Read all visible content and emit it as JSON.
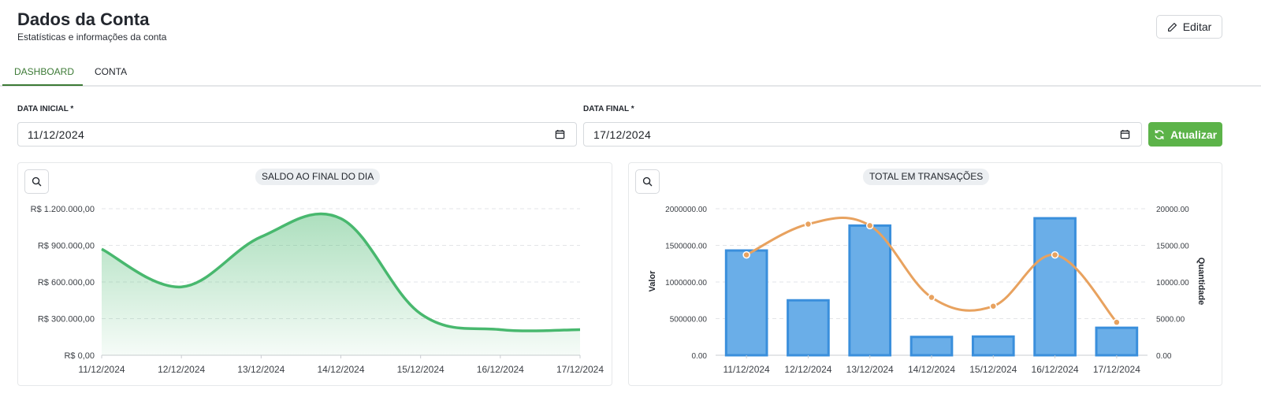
{
  "header": {
    "title": "Dados da Conta",
    "subtitle": "Estatísticas e informações da conta",
    "edit_label": "Editar"
  },
  "tabs": [
    {
      "label": "DASHBOARD",
      "active": true
    },
    {
      "label": "CONTA",
      "active": false
    }
  ],
  "filters": {
    "start_label": "DATA INICIAL",
    "start_value": "11/12/2024",
    "end_label": "DATA FINAL",
    "end_value": "17/12/2024",
    "required_mark": "*",
    "refresh_label": "Atualizar"
  },
  "colors": {
    "accent": "#3c7a35",
    "button_green": "#5cb349",
    "line_green": "#48b86e",
    "bar_blue": "#6aaee8",
    "bar_border": "#3a8fdc",
    "line_orange": "#e8a25f"
  },
  "chart_data": [
    {
      "type": "area",
      "title": "SALDO AO FINAL DO DIA",
      "categories": [
        "11/12/2024",
        "12/12/2024",
        "13/12/2024",
        "14/12/2024",
        "15/12/2024",
        "16/12/2024",
        "17/12/2024"
      ],
      "series": [
        {
          "values": [
            870000,
            560000,
            970000,
            1120000,
            340000,
            210000,
            210000
          ]
        }
      ],
      "yticks": [
        "R$ 0,00",
        "R$ 300.000,00",
        "R$ 600.000,00",
        "R$ 900.000,00",
        "R$ 1.200.000,00"
      ],
      "ylim": [
        0,
        1200000
      ],
      "grid": true
    },
    {
      "type": "bar",
      "title": "TOTAL EM TRANSAÇÕES",
      "categories": [
        "11/12/2024",
        "12/12/2024",
        "13/12/2024",
        "14/12/2024",
        "15/12/2024",
        "16/12/2024",
        "17/12/2024"
      ],
      "series": [
        {
          "name": "Valor",
          "type": "bar",
          "axis": "left",
          "values": [
            1430000,
            750000,
            1770000,
            250000,
            255000,
            1870000,
            375000
          ]
        },
        {
          "name": "Quantidade",
          "type": "line",
          "axis": "right",
          "values": [
            13700,
            17900,
            17700,
            7900,
            6700,
            13700,
            4500
          ]
        }
      ],
      "ylabel": "Valor",
      "y2label": "Quantidade",
      "yticks": [
        "0.00",
        "500000.00",
        "1000000.00",
        "1500000.00",
        "2000000.00"
      ],
      "y2ticks": [
        "0.00",
        "5000.00",
        "10000.00",
        "15000.00",
        "20000.00"
      ],
      "ylim": [
        0,
        2000000
      ],
      "y2lim": [
        0,
        20000
      ],
      "grid": true
    }
  ]
}
